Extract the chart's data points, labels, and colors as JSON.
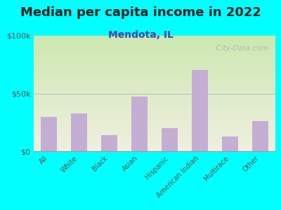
{
  "title": "Median per capita income in 2022",
  "subtitle": "Mendota, IL",
  "categories": [
    "All",
    "White",
    "Black",
    "Asian",
    "Hispanic",
    "American Indian",
    "Multirace",
    "Other"
  ],
  "values": [
    30000,
    33000,
    14000,
    47000,
    20000,
    70000,
    13000,
    26000
  ],
  "bar_color": "#c4aed4",
  "background_outer": "#00FFFF",
  "grad_top": "#cce8b0",
  "grad_bottom": "#f0f0e0",
  "title_color": "#222222",
  "subtitle_color": "#4444aa",
  "tick_color": "#555555",
  "ylim": [
    0,
    100000
  ],
  "yticks": [
    0,
    50000,
    100000
  ],
  "ytick_labels": [
    "$0",
    "$50k",
    "$100k"
  ],
  "title_fontsize": 13,
  "subtitle_fontsize": 10,
  "watermark": "  City-Data.com"
}
